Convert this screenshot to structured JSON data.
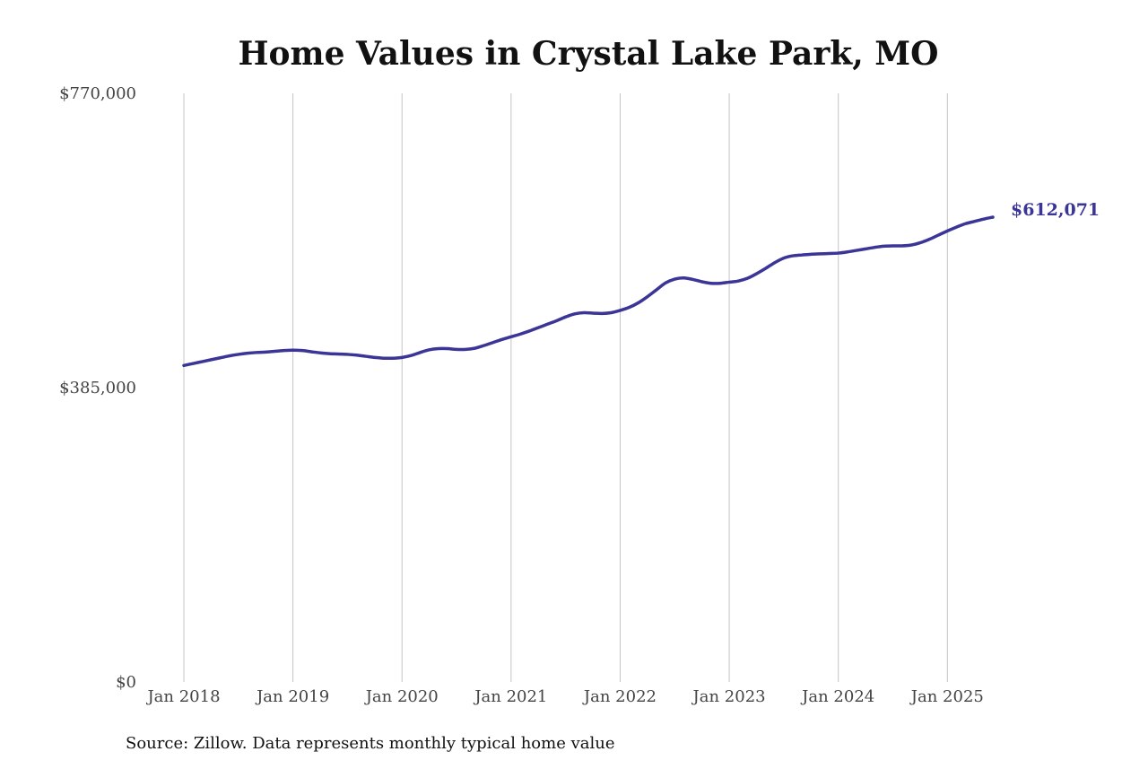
{
  "chart_data": {
    "type": "line",
    "title": "Home Values in Crystal Lake Park, MO",
    "xlabel": "",
    "ylabel": "",
    "source_note": "Source: Zillow. Data represents monthly typical home value",
    "ylim": [
      0,
      770000
    ],
    "y_ticks": [
      {
        "value": 0,
        "label": "$0"
      },
      {
        "value": 385000,
        "label": "$385,000"
      },
      {
        "value": 770000,
        "label": "$770,000"
      }
    ],
    "x_ticks": [
      {
        "value": "2018-01",
        "label": "Jan 2018"
      },
      {
        "value": "2019-01",
        "label": "Jan 2019"
      },
      {
        "value": "2020-01",
        "label": "Jan 2020"
      },
      {
        "value": "2021-01",
        "label": "Jan 2021"
      },
      {
        "value": "2022-01",
        "label": "Jan 2022"
      },
      {
        "value": "2023-01",
        "label": "Jan 2023"
      },
      {
        "value": "2024-01",
        "label": "Jan 2024"
      },
      {
        "value": "2025-01",
        "label": "Jan 2025"
      }
    ],
    "xlim": [
      "2018-01",
      "2025-06"
    ],
    "grid": {
      "vertical": true,
      "horizontal": false
    },
    "line_color": "#3a3597",
    "end_label": "$612,071",
    "series": [
      {
        "x": [
          "2018-01",
          "2018-02",
          "2018-03",
          "2018-04",
          "2018-05",
          "2018-06",
          "2018-07",
          "2018-08",
          "2018-09",
          "2018-10",
          "2018-11",
          "2018-12",
          "2019-01",
          "2019-02",
          "2019-03",
          "2019-04",
          "2019-05",
          "2019-06",
          "2019-07",
          "2019-08",
          "2019-09",
          "2019-10",
          "2019-11",
          "2019-12",
          "2020-01",
          "2020-02",
          "2020-03",
          "2020-04",
          "2020-05",
          "2020-06",
          "2020-07",
          "2020-08",
          "2020-09",
          "2020-10",
          "2020-11",
          "2020-12",
          "2021-01",
          "2021-02",
          "2021-03",
          "2021-04",
          "2021-05",
          "2021-06",
          "2021-07",
          "2021-08",
          "2021-09",
          "2021-10",
          "2021-11",
          "2021-12",
          "2022-01",
          "2022-02",
          "2022-03",
          "2022-04",
          "2022-05",
          "2022-06",
          "2022-07",
          "2022-08",
          "2022-09",
          "2022-10",
          "2022-11",
          "2022-12",
          "2023-01",
          "2023-02",
          "2023-03",
          "2023-04",
          "2023-05",
          "2023-06",
          "2023-07",
          "2023-08",
          "2023-09",
          "2023-10",
          "2023-11",
          "2023-12",
          "2024-01",
          "2024-02",
          "2024-03",
          "2024-04",
          "2024-05",
          "2024-06",
          "2024-07",
          "2024-08",
          "2024-09",
          "2024-10",
          "2024-11",
          "2024-12",
          "2025-01",
          "2025-02",
          "2025-03",
          "2025-04",
          "2025-05",
          "2025-06"
        ],
        "values": [
          414000,
          416500,
          419000,
          421500,
          424000,
          426500,
          428500,
          430000,
          431000,
          431500,
          432500,
          433500,
          434000,
          433500,
          432000,
          430500,
          429500,
          429000,
          428500,
          427500,
          426000,
          424500,
          423500,
          423500,
          424500,
          427000,
          431000,
          434500,
          436000,
          436000,
          435000,
          435000,
          436500,
          440000,
          444000,
          448000,
          451500,
          455000,
          459000,
          463500,
          468000,
          472500,
          477500,
          481500,
          483000,
          482500,
          482000,
          483000,
          486000,
          490000,
          496000,
          504000,
          513000,
          522000,
          527000,
          528500,
          526500,
          523500,
          521500,
          521500,
          523000,
          524500,
          528000,
          534000,
          541000,
          548500,
          554500,
          557500,
          558500,
          559500,
          560000,
          560500,
          561000,
          562500,
          564500,
          566500,
          568500,
          570000,
          570500,
          570500,
          571500,
          574500,
          579000,
          584500,
          590000,
          595000,
          599500,
          602500,
          605500,
          608000
        ]
      }
    ]
  }
}
